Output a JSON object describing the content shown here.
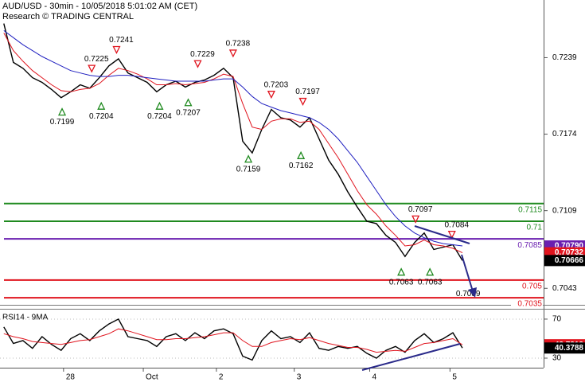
{
  "header": {
    "title": "AUD/USD - 30min - 10/05/2018 5:01:02 AM (CET)",
    "subtitle": "Research © TRADING CENTRAL"
  },
  "chart_data": [
    {
      "type": "line",
      "x": [
        0,
        1,
        2,
        3,
        4,
        5,
        6,
        7,
        8,
        9,
        10,
        11,
        12,
        13,
        14,
        15,
        16,
        17,
        18,
        19,
        20,
        21,
        22,
        23,
        24,
        25,
        26,
        27,
        28,
        29,
        30,
        31,
        32,
        33,
        34,
        35,
        36,
        37,
        38,
        39,
        40,
        41,
        42,
        43,
        44,
        45,
        46,
        47,
        48
      ],
      "xlim": [
        -0.4,
        56.5
      ],
      "ylim": [
        0.7031,
        0.7288
      ],
      "yticks": [
        0.7239,
        0.7174,
        0.7109,
        0.7043
      ],
      "series": [
        {
          "color": "#000000",
          "values": [
            0.7268,
            0.7235,
            0.723,
            0.7222,
            0.7218,
            0.7212,
            0.7205,
            0.721,
            0.7216,
            0.7213,
            0.7222,
            0.7232,
            0.7238,
            0.7226,
            0.7222,
            0.7218,
            0.721,
            0.7216,
            0.7219,
            0.7214,
            0.7218,
            0.722,
            0.7224,
            0.723,
            0.7222,
            0.7168,
            0.7158,
            0.7178,
            0.7195,
            0.7188,
            0.7186,
            0.718,
            0.7188,
            0.717,
            0.7152,
            0.714,
            0.7125,
            0.7112,
            0.71,
            0.7098,
            0.7088,
            0.7082,
            0.707,
            0.7082,
            0.709,
            0.7076,
            0.7078,
            0.708,
            0.70666
          ]
        },
        {
          "color": "#e0141e",
          "values": [
            0.726,
            0.7245,
            0.7236,
            0.7228,
            0.7222,
            0.7216,
            0.7211,
            0.721,
            0.7212,
            0.7213,
            0.7217,
            0.7224,
            0.723,
            0.7228,
            0.7225,
            0.7221,
            0.7216,
            0.7216,
            0.7217,
            0.7216,
            0.7217,
            0.7218,
            0.7221,
            0.7225,
            0.7223,
            0.72,
            0.718,
            0.7178,
            0.7185,
            0.7187,
            0.7187,
            0.7184,
            0.7185,
            0.7178,
            0.7166,
            0.7154,
            0.714,
            0.7126,
            0.7114,
            0.7106,
            0.7096,
            0.7088,
            0.7079,
            0.708,
            0.7084,
            0.708,
            0.7079,
            0.7077,
            0.70732
          ]
        },
        {
          "color": "#2020c0",
          "values": [
            0.7262,
            0.7256,
            0.725,
            0.7245,
            0.724,
            0.7236,
            0.7232,
            0.7228,
            0.7226,
            0.7224,
            0.7223,
            0.7223,
            0.7224,
            0.7224,
            0.7223,
            0.7222,
            0.7221,
            0.722,
            0.7219,
            0.7219,
            0.7219,
            0.7219,
            0.722,
            0.7221,
            0.7221,
            0.7214,
            0.7206,
            0.72,
            0.7197,
            0.7194,
            0.7192,
            0.719,
            0.7188,
            0.7184,
            0.7178,
            0.717,
            0.716,
            0.715,
            0.7138,
            0.7126,
            0.7114,
            0.7104,
            0.7096,
            0.709,
            0.7086,
            0.7083,
            0.7081,
            0.708,
            0.7079
          ]
        }
      ],
      "levels": [
        {
          "value": 0.7115,
          "color": "#1f8a1f"
        },
        {
          "value": 0.71,
          "color": "#1f8a1f"
        },
        {
          "value": 0.7085,
          "color": "#6a1fb0"
        },
        {
          "value": 0.705,
          "color": "#e0141e"
        },
        {
          "value": 0.7035,
          "color": "#e0141e"
        }
      ],
      "price_tags": [
        {
          "value": 0.7079,
          "label": "0.70790",
          "color": "#6a1fb0"
        },
        {
          "value": 0.70732,
          "label": "0.70732",
          "color": "#e0141e"
        },
        {
          "value": 0.70666,
          "label": "0.70666",
          "color": "#000000"
        }
      ],
      "annotations": [
        {
          "x": 6.1,
          "value": 0.7199,
          "kind": "low"
        },
        {
          "x": 9.2,
          "value": 0.7225,
          "kind": "high"
        },
        {
          "x": 10.2,
          "value": 0.7204,
          "kind": "low"
        },
        {
          "x": 11.8,
          "value": 0.7241,
          "kind": "high"
        },
        {
          "x": 16.3,
          "value": 0.7204,
          "kind": "low"
        },
        {
          "x": 19.3,
          "value": 0.7207,
          "kind": "low"
        },
        {
          "x": 20.3,
          "value": 0.7229,
          "kind": "high"
        },
        {
          "x": 24.0,
          "value": 0.7238,
          "kind": "high"
        },
        {
          "x": 25.6,
          "value": 0.7159,
          "kind": "low"
        },
        {
          "x": 28.0,
          "value": 0.7203,
          "kind": "high"
        },
        {
          "x": 31.1,
          "value": 0.7162,
          "kind": "low"
        },
        {
          "x": 31.3,
          "value": 0.7197,
          "kind": "high"
        },
        {
          "x": 41.6,
          "value": 0.7063,
          "kind": "low"
        },
        {
          "x": 43.1,
          "value": 0.7097,
          "kind": "high"
        },
        {
          "x": 44.6,
          "value": 0.7063,
          "kind": "low"
        },
        {
          "x": 46.9,
          "value": 0.7084,
          "kind": "high"
        },
        {
          "x": 48.6,
          "value": 0.7039,
          "kind": "target"
        }
      ]
    },
    {
      "type": "line",
      "title": "RSI14 - 9MA",
      "x": [
        0,
        1,
        2,
        3,
        4,
        5,
        6,
        7,
        8,
        9,
        10,
        11,
        12,
        13,
        14,
        15,
        16,
        17,
        18,
        19,
        20,
        21,
        22,
        23,
        24,
        25,
        26,
        27,
        28,
        29,
        30,
        31,
        32,
        33,
        34,
        35,
        36,
        37,
        38,
        39,
        40,
        41,
        42,
        43,
        44,
        45,
        46,
        47,
        48
      ],
      "xlim": [
        -0.4,
        56.5
      ],
      "xticks": [
        {
          "value": 6.25,
          "label": "28"
        },
        {
          "value": 14.6,
          "label": "Oct"
        },
        {
          "value": 22.25,
          "label": "2"
        },
        {
          "value": 30.4,
          "label": "3"
        },
        {
          "value": 38.3,
          "label": "4"
        },
        {
          "value": 46.7,
          "label": "5"
        }
      ],
      "ylim": [
        20.2,
        77.3
      ],
      "yticks": [
        70,
        30
      ],
      "series": [
        {
          "color": "#000000",
          "values": [
            62,
            45,
            48,
            40,
            52,
            44,
            38,
            50,
            55,
            48,
            58,
            65,
            70,
            52,
            50,
            48,
            42,
            52,
            55,
            48,
            56,
            50,
            58,
            60,
            55,
            32,
            28,
            48,
            58,
            50,
            52,
            46,
            56,
            40,
            38,
            42,
            40,
            42,
            35,
            30,
            38,
            42,
            36,
            48,
            55,
            46,
            50,
            56,
            40.3788
          ]
        },
        {
          "color": "#e0141e",
          "values": [
            55,
            52,
            50,
            47,
            46,
            45,
            44,
            46,
            48,
            49,
            52,
            55,
            60,
            58,
            55,
            52,
            49,
            49,
            50,
            50,
            51,
            52,
            54,
            56,
            56,
            48,
            42,
            42,
            46,
            48,
            50,
            49,
            51,
            48,
            45,
            43,
            41,
            41,
            39,
            36,
            37,
            38,
            37,
            41,
            45,
            46,
            48,
            50,
            43.7213
          ]
        }
      ]
    }
  ]
}
